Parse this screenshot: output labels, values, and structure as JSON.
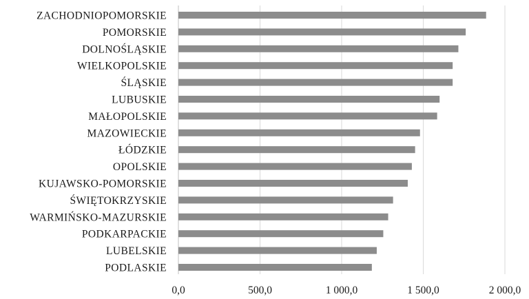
{
  "chart_data": {
    "type": "bar",
    "orientation": "horizontal",
    "categories": [
      "ZACHODNIOPOMORSKIE",
      "POMORSKIE",
      "DOLNOŚLĄSKIE",
      "WIELKOPOLSKIE",
      "ŚLĄSKIE",
      "LUBUSKIE",
      "MAŁOPOLSKIE",
      "MAZOWIECKIE",
      "ŁÓDZKIE",
      "OPOLSKIE",
      "KUJAWSKO-POMORSKIE",
      "ŚWIĘTOKRZYSKIE",
      "WARMIŃSKO-MAZURSKIE",
      "PODKARPACKIE",
      "LUBELSKIE",
      "PODLASKIE"
    ],
    "values": [
      1885,
      1760,
      1715,
      1680,
      1680,
      1600,
      1585,
      1480,
      1450,
      1430,
      1405,
      1315,
      1285,
      1255,
      1215,
      1185
    ],
    "xlim": [
      0,
      2000
    ],
    "xticks": [
      0,
      500,
      1000,
      1500,
      2000
    ],
    "xtick_labels": [
      "0,0",
      "500,0",
      "1 000,0",
      "1 500,0",
      "2 000,0"
    ],
    "title": "",
    "xlabel": "",
    "ylabel": "",
    "grid": "vertical",
    "legend": "none",
    "colors": {
      "bar": "#8c8c8c",
      "grid": "#d9d9d9",
      "axis": "#bfbfbf",
      "text": "#1a1a1a"
    }
  }
}
